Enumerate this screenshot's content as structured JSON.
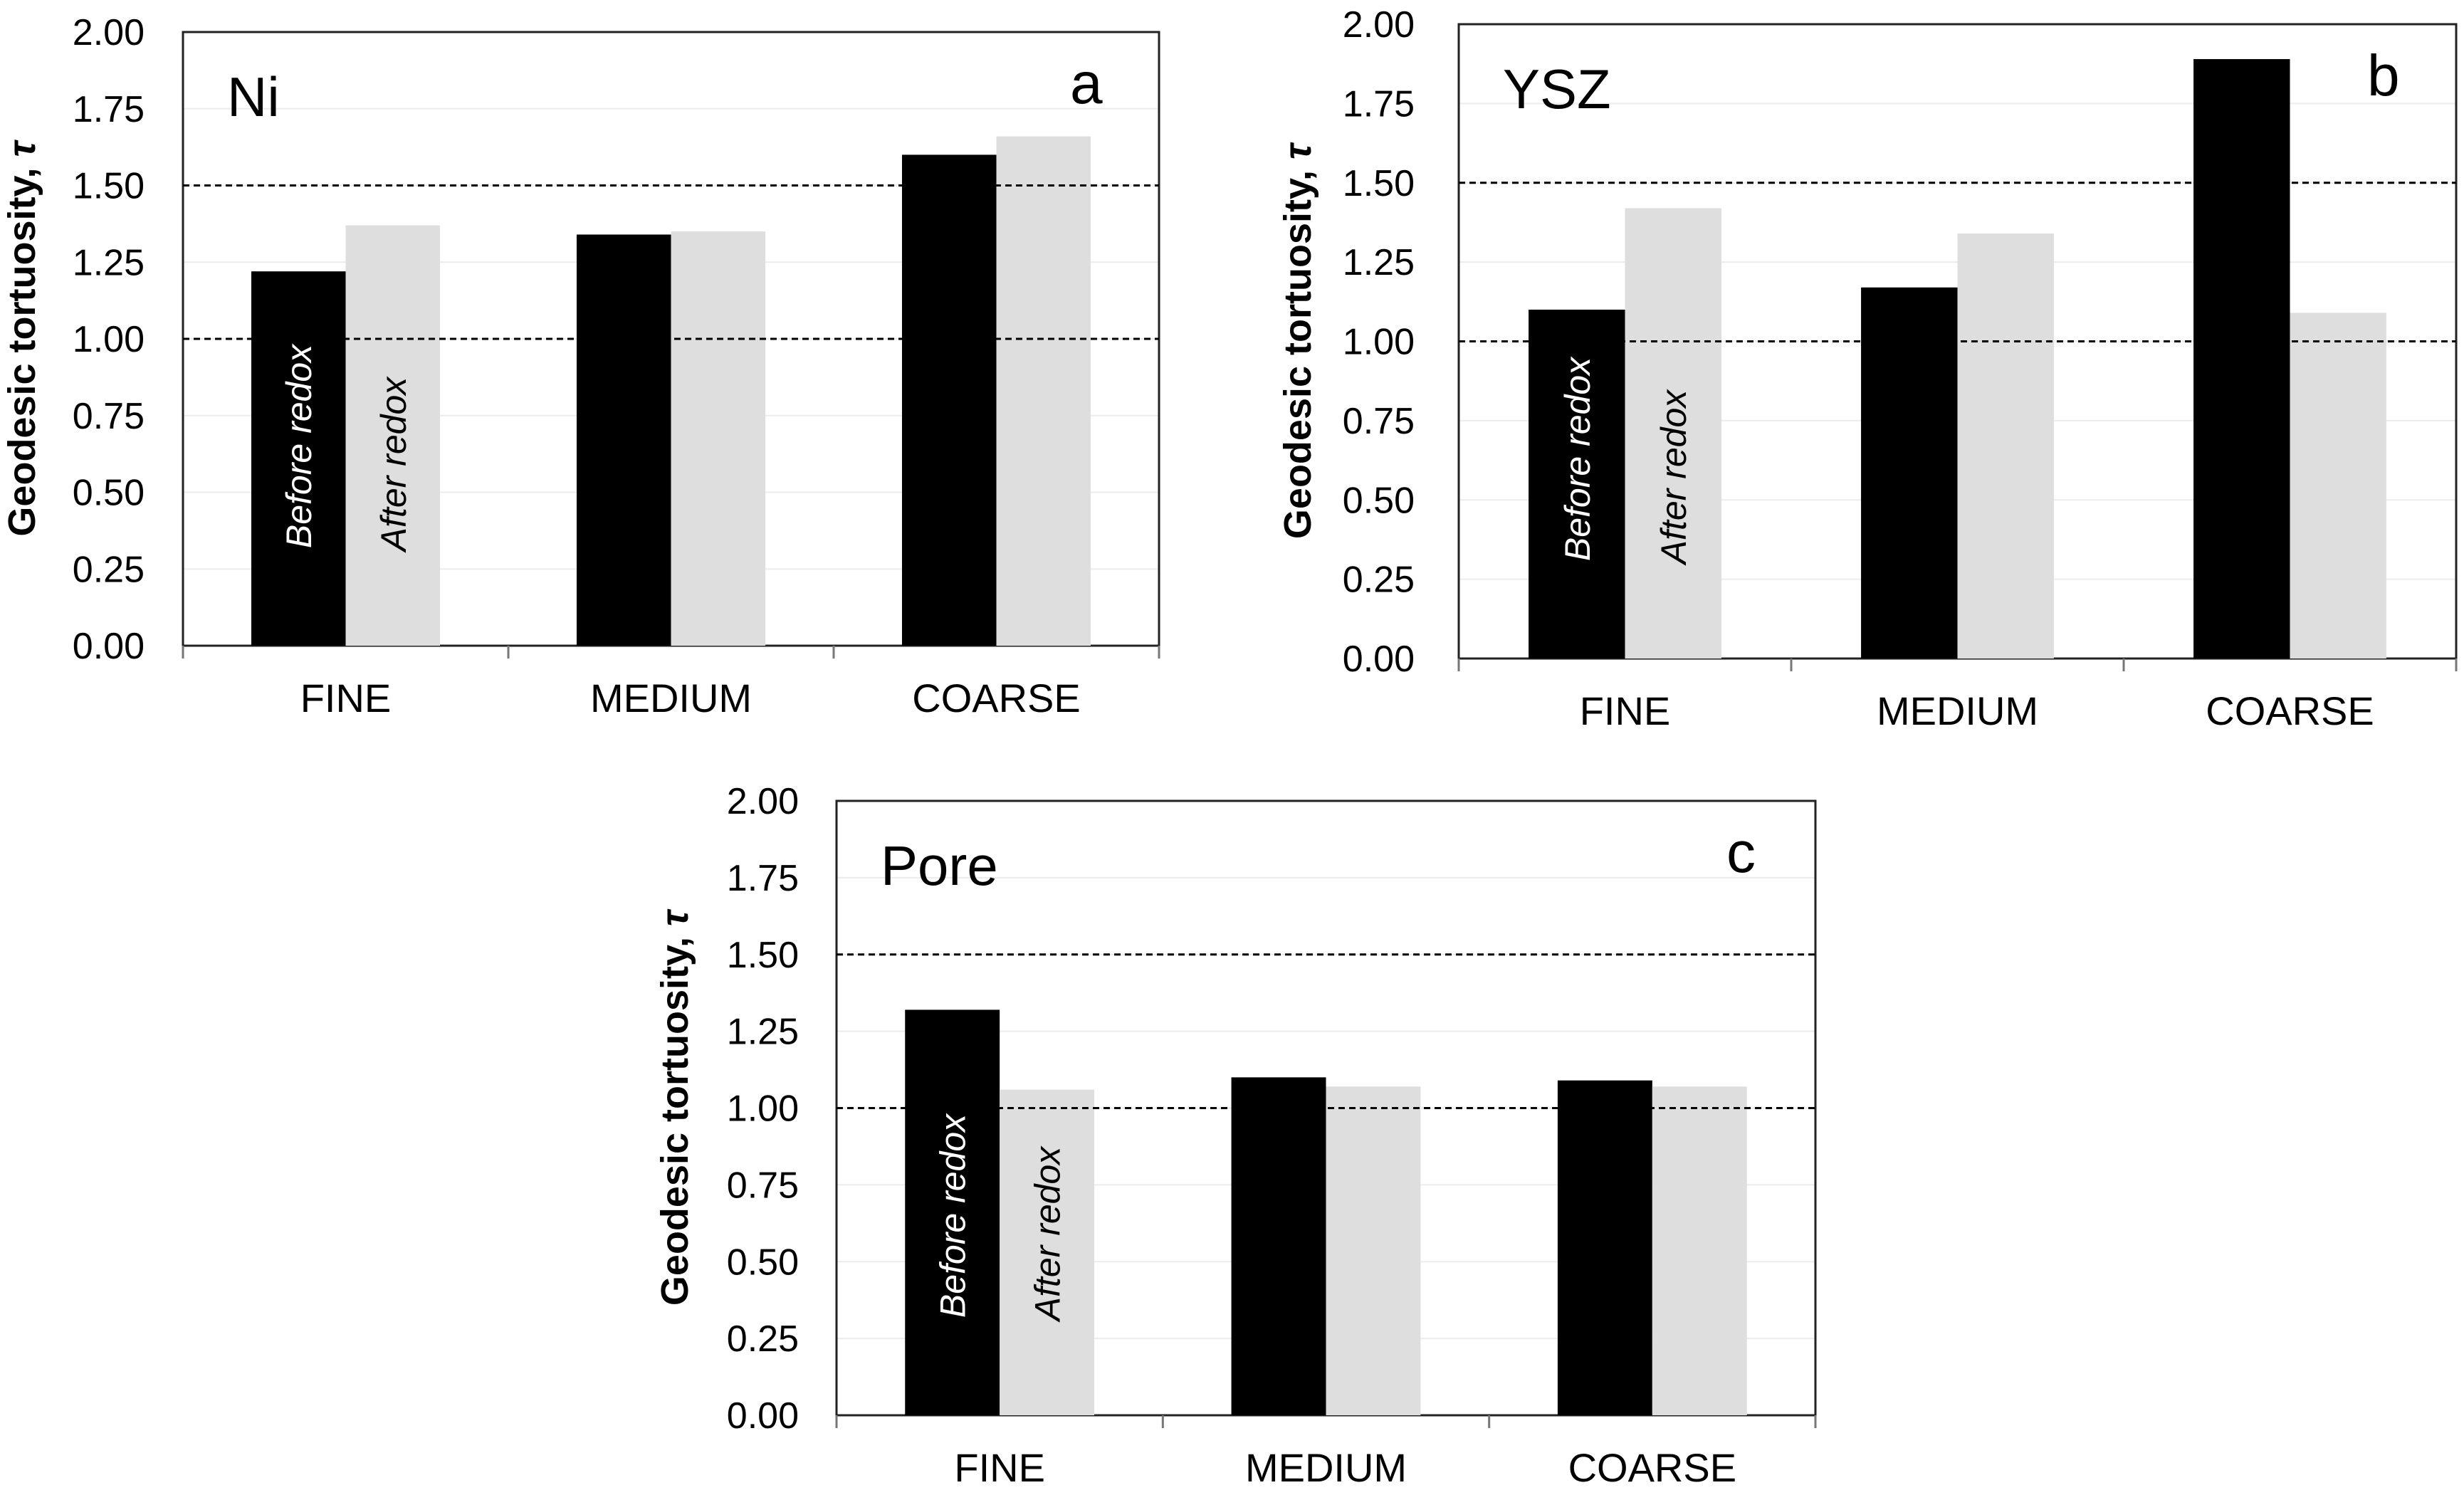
{
  "chart_data": [
    {
      "type": "bar",
      "panel_letter": "a",
      "material": "Ni",
      "ylabel": "Geodesic tortuosity, ",
      "ylabel_symbol": "τ",
      "categories": [
        "FINE",
        "MEDIUM",
        "COARSE"
      ],
      "series": [
        {
          "name": "Before redox",
          "label": "Before redox",
          "color": "#000000",
          "values": [
            1.22,
            1.34,
            1.6
          ]
        },
        {
          "name": "After redox",
          "label": "After redox",
          "color": "#dedede",
          "values": [
            1.37,
            1.35,
            1.66
          ]
        }
      ],
      "ylim": [
        0,
        2
      ],
      "ytick_labels": [
        "0.00",
        "0.25",
        "0.50",
        "0.75",
        "1.00",
        "1.25",
        "1.50",
        "1.75",
        "2.00"
      ],
      "reference_lines": [
        1.0,
        1.5
      ],
      "grid": true
    },
    {
      "type": "bar",
      "panel_letter": "b",
      "material": "YSZ",
      "ylabel": "Geodesic tortuosity, ",
      "ylabel_symbol": "τ",
      "categories": [
        "FINE",
        "MEDIUM",
        "COARSE"
      ],
      "series": [
        {
          "name": "Before redox",
          "label": "Before redox",
          "color": "#000000",
          "values": [
            1.1,
            1.17,
            1.89
          ]
        },
        {
          "name": "After redox",
          "label": "After redox",
          "color": "#dedede",
          "values": [
            1.42,
            1.34,
            1.09
          ]
        }
      ],
      "ylim": [
        0,
        2
      ],
      "ytick_labels": [
        "0.00",
        "0.25",
        "0.50",
        "0.75",
        "1.00",
        "1.25",
        "1.50",
        "1.75",
        "2.00"
      ],
      "reference_lines": [
        1.0,
        1.5
      ],
      "grid": true
    },
    {
      "type": "bar",
      "panel_letter": "c",
      "material": "Pore",
      "ylabel": "Geodesic tortuosity, ",
      "ylabel_symbol": "τ",
      "categories": [
        "FINE",
        "MEDIUM",
        "COARSE"
      ],
      "series": [
        {
          "name": "Before redox",
          "label": "Before redox",
          "color": "#000000",
          "values": [
            1.32,
            1.1,
            1.09
          ]
        },
        {
          "name": "After redox",
          "label": "After redox",
          "color": "#dedede",
          "values": [
            1.06,
            1.07,
            1.07
          ]
        }
      ],
      "ylim": [
        0,
        2
      ],
      "ytick_labels": [
        "0.00",
        "0.25",
        "0.50",
        "0.75",
        "1.00",
        "1.25",
        "1.50",
        "1.75",
        "2.00"
      ],
      "reference_lines": [
        1.0,
        1.5
      ],
      "grid": true
    }
  ]
}
